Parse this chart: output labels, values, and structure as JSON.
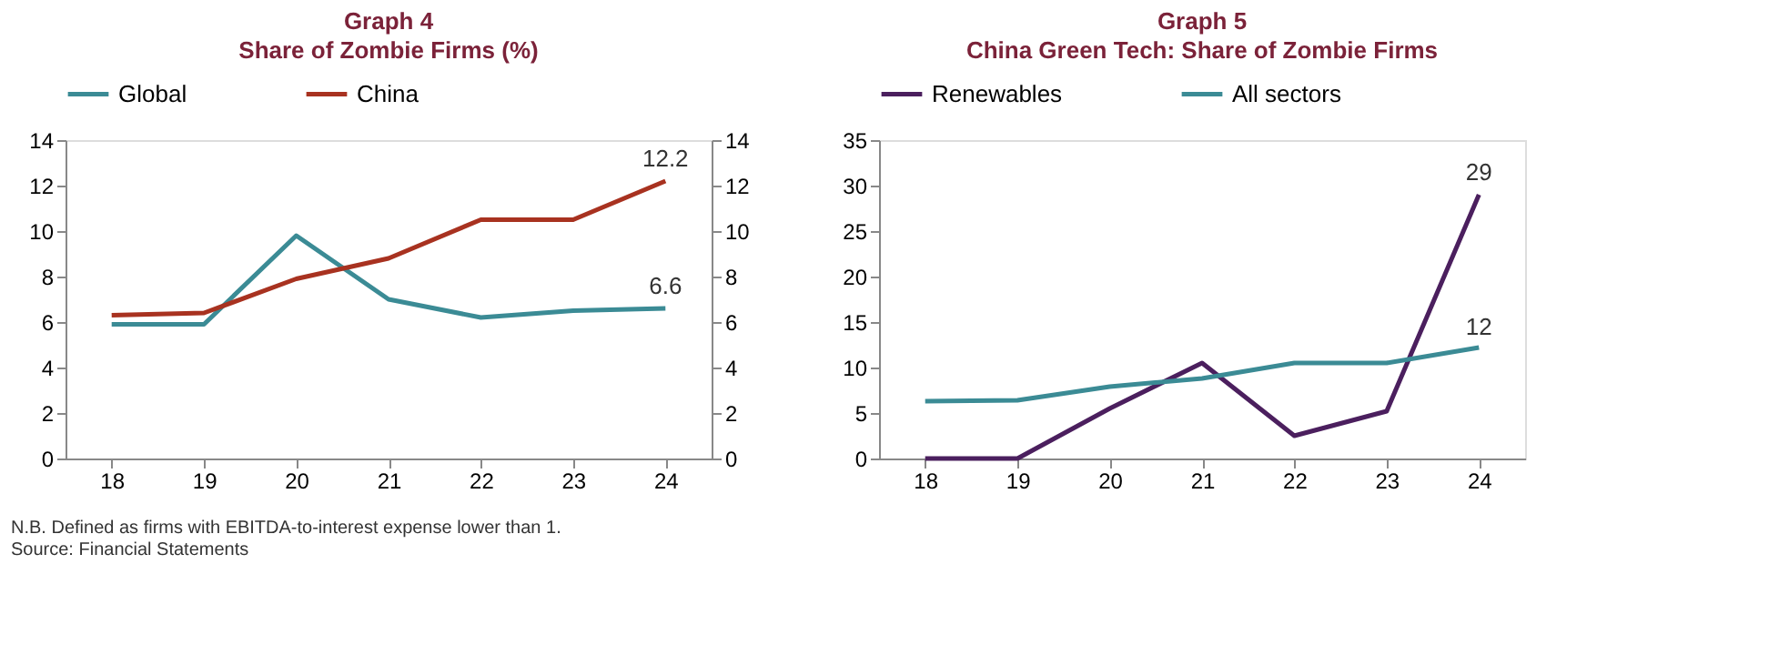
{
  "chart_data": [
    {
      "type": "line",
      "title": "Graph 4",
      "subtitle": "Share of Zombie Firms (%)",
      "categories": [
        "18",
        "19",
        "20",
        "21",
        "22",
        "23",
        "24"
      ],
      "series": [
        {
          "name": "Global",
          "color": "#3b8b95",
          "values": [
            5.9,
            5.9,
            9.8,
            7.0,
            6.2,
            6.5,
            6.6
          ]
        },
        {
          "name": "China",
          "color": "#a83220",
          "values": [
            6.3,
            6.4,
            7.9,
            8.8,
            10.5,
            10.5,
            12.2
          ]
        }
      ],
      "ylim": [
        0,
        14
      ],
      "yticks": [
        0,
        2,
        4,
        6,
        8,
        10,
        12,
        14
      ],
      "y2lim": [
        0,
        14
      ],
      "y2ticks": [
        0,
        2,
        4,
        6,
        8,
        10,
        12,
        14
      ],
      "grid": false,
      "legend": "top",
      "marker": "none",
      "annotations": [
        {
          "text": "12.2",
          "x": "24",
          "y": 12.2
        },
        {
          "text": "6.6",
          "x": "24",
          "y": 6.6
        },
        "N.B. Defined as firms with EBITDA-to-interest expense lower than 1.",
        "Source: Financial Statements"
      ]
    },
    {
      "type": "line",
      "title": "Graph 5",
      "subtitle": "China Green Tech: Share of Zombie Firms",
      "categories": [
        "18",
        "19",
        "20",
        "21",
        "22",
        "23",
        "24"
      ],
      "series": [
        {
          "name": "Renewables",
          "color": "#4b1f5e",
          "values": [
            0,
            0,
            5.5,
            10.5,
            2.5,
            5.2,
            29
          ]
        },
        {
          "name": "All sectors",
          "color": "#3b8b95",
          "values": [
            6.3,
            6.4,
            7.9,
            8.8,
            10.5,
            10.5,
            12.2
          ]
        }
      ],
      "ylim": [
        0,
        35
      ],
      "yticks": [
        0,
        5,
        10,
        15,
        20,
        25,
        30,
        35
      ],
      "grid": false,
      "legend": "top",
      "marker": "none",
      "annotations": [
        {
          "text": "29",
          "x": "24",
          "y": 29
        },
        {
          "text": "12",
          "x": "24",
          "y": 12
        }
      ]
    }
  ]
}
